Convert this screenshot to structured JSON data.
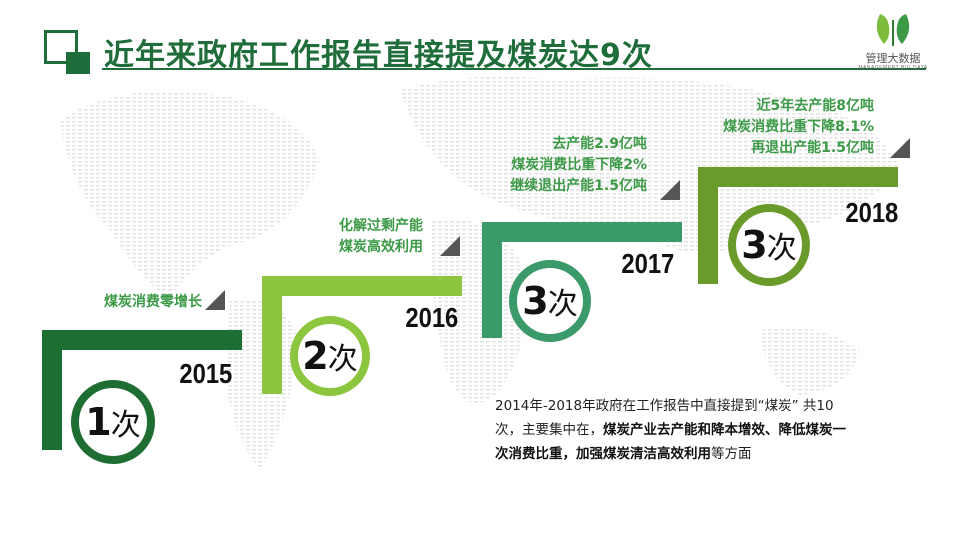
{
  "header": {
    "title": "近年来政府工作报告直接提及煤炭达9次",
    "logo_text": "管理大数据",
    "logo_subtext": "MANAGEMENT BIG DATA",
    "accent_color": "#1f6d3a"
  },
  "steps": [
    {
      "year": "2015",
      "count_num": "1",
      "count_unit": "次",
      "notes": [
        "煤炭消费零增长"
      ],
      "color": "#1e6e34"
    },
    {
      "year": "2016",
      "count_num": "2",
      "count_unit": "次",
      "notes": [
        "化解过剩产能",
        "煤炭高效利用"
      ],
      "color": "#8cc63f"
    },
    {
      "year": "2017",
      "count_num": "3",
      "count_unit": "次",
      "notes": [
        "去产能2.9亿吨",
        "煤炭消费比重下降2%",
        "继续退出产能1.5亿吨"
      ],
      "color": "#3a9a6a"
    },
    {
      "year": "2018",
      "count_num": "3",
      "count_unit": "次",
      "notes": [
        "近5年去产能8亿吨",
        "煤炭消费比重下降8.1%",
        "再退出产能1.5亿吨"
      ],
      "color": "#6a9a2a"
    }
  ],
  "summary": {
    "plain_1": "2014年-2018年政府在工作报告中直接提到“煤炭” 共10次，主要集中在，",
    "bold_1": "煤炭产业去产能和降本增效、降低煤炭一次消费比重，加强煤炭清洁高效利用",
    "plain_2": "等方面"
  }
}
